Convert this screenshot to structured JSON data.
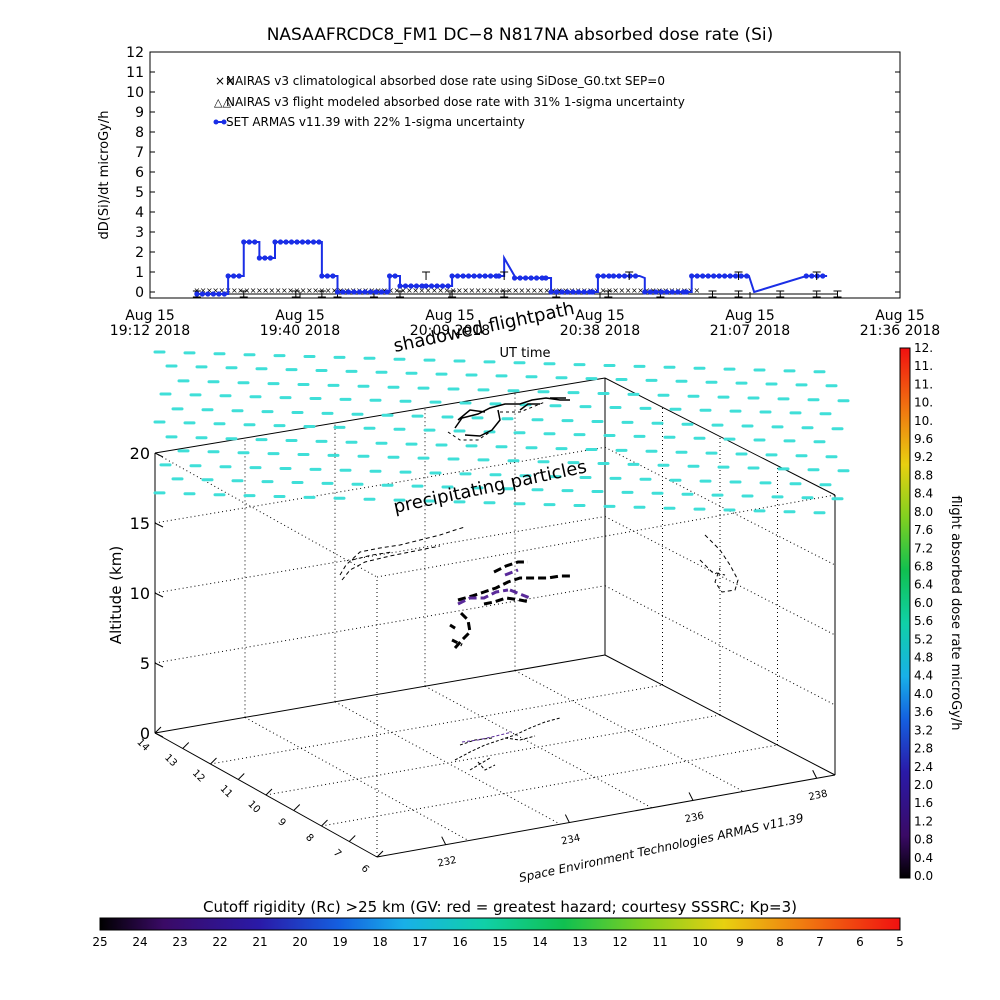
{
  "figure": {
    "title": "NASAAFRCDC8_FM1 DC−8    N817NA absorbed dose rate (Si)",
    "credit": "Space Environment Technologies ARMAS v11.39"
  },
  "colors": {
    "nairas_clim": "#d83030",
    "nairas_flight": "#000000",
    "armas": "#1a2ee6",
    "wind_barbs": "#3fdfd8",
    "shadow_track": "#000000",
    "track_3d": "#000000",
    "track_high_dose": "#5a2a9a"
  },
  "chart_data": [
    {
      "type": "line",
      "title": "NASAAFRCDC8_FM1 DC−8    N817NA absorbed dose rate (Si)",
      "xlabel": "UT time",
      "ylabel": "dD(Si)/dt microGy/h",
      "ylim": [
        0,
        12
      ],
      "yticks": [
        "0",
        "1",
        "2",
        "3",
        "4",
        "5",
        "6",
        "7",
        "8",
        "9",
        "10",
        "11",
        "12"
      ],
      "xlim": [
        "19:12",
        "21:36"
      ],
      "xticks": [
        {
          "date": "Aug 15",
          "time": "19:12 2018"
        },
        {
          "date": "Aug 15",
          "time": "19:40 2018"
        },
        {
          "date": "Aug 15",
          "time": "20:09 2018"
        },
        {
          "date": "Aug 15",
          "time": "20:38 2018"
        },
        {
          "date": "Aug 15",
          "time": "21:07 2018"
        },
        {
          "date": "Aug 15",
          "time": "21:36 2018"
        }
      ],
      "grid": false,
      "legend_position": "top-left",
      "series": [
        {
          "name": "NAIRAS v3 climatological absorbed dose rate using SiDose_G0.txt SEP=0",
          "marker": "x",
          "color": "#d83030",
          "x": [
            "19:21",
            "20:58"
          ],
          "y": [
            0.1,
            0.1
          ]
        },
        {
          "name": "NAIRAS v3 flight modeled absorbed dose rate with 31% 1-sigma uncertainty",
          "marker": "triangle",
          "color": "#000000",
          "x": [
            "19:21",
            "19:30",
            "19:40",
            "19:45",
            "19:48",
            "19:55",
            "20:00",
            "20:10",
            "20:20",
            "20:30",
            "20:40",
            "20:50",
            "21:00",
            "21:05",
            "21:13",
            "21:20",
            "21:24"
          ],
          "y": [
            -0.1,
            -0.1,
            -0.1,
            -0.1,
            -0.1,
            -0.1,
            -0.1,
            -0.1,
            -0.1,
            -0.1,
            -0.1,
            -0.1,
            -0.1,
            -0.1,
            -0.1,
            -0.1,
            -0.1
          ]
        },
        {
          "name": "SET ARMAS v11.39 with 22% 1-sigma uncertainty",
          "marker": "filled-circle",
          "color": "#1a2ee6",
          "x": [
            "19:21",
            "19:27",
            "19:27",
            "19:30",
            "19:30",
            "19:33",
            "19:33",
            "19:36",
            "19:36",
            "19:45",
            "19:45",
            "19:48",
            "19:48",
            "19:58",
            "19:58",
            "20:00",
            "20:00",
            "20:05",
            "20:10",
            "20:10",
            "20:19",
            "20:20",
            "20:20",
            "20:22",
            "20:22",
            "20:28",
            "20:29",
            "20:29",
            "20:37",
            "20:38",
            "20:38",
            "20:41",
            "20:41",
            "20:46",
            "20:47",
            "20:47",
            "20:55",
            "20:56",
            "20:56",
            "21:07",
            "21:08",
            "21:08",
            "21:18",
            "21:22"
          ],
          "y": [
            -0.1,
            -0.1,
            0.8,
            0.8,
            2.5,
            2.5,
            1.7,
            1.7,
            2.5,
            2.5,
            0.8,
            0.8,
            0,
            0,
            0.8,
            0.8,
            0.3,
            0.3,
            0.3,
            0.8,
            0.8,
            0.8,
            1.7,
            0.8,
            0.7,
            0.7,
            0.7,
            0,
            0,
            0,
            0.8,
            0.8,
            0.8,
            0.8,
            0.7,
            0,
            0,
            0,
            0.8,
            0.8,
            0,
            0,
            0.8,
            0.8
          ]
        }
      ]
    },
    {
      "type": "scatter",
      "subtype": "3d-flight-track",
      "zlabel": "Altitude (km)",
      "zticks": [
        "0",
        "5",
        "10",
        "15",
        "20"
      ],
      "zlim": [
        0,
        20
      ],
      "left_axis_ticks": [
        "14",
        "13",
        "12",
        "11",
        "10",
        "9",
        "8",
        "7",
        "6"
      ],
      "right_axis_ticks": [
        "232",
        "234",
        "236",
        "238"
      ],
      "annotations": [
        "shadowed flightpath",
        "precipitating particles"
      ],
      "colorbar_right": {
        "label": "flight absorbed dose rate microGy/h",
        "ticks": [
          "0.0",
          "0.4",
          "0.8",
          "1.2",
          "1.6",
          "2.0",
          "2.4",
          "2.8",
          "3.2",
          "3.6",
          "4.0",
          "4.4",
          "4.8",
          "5.2",
          "5.6",
          "6.0",
          "6.4",
          "6.8",
          "7.2",
          "7.6",
          "8.0",
          "8.4",
          "8.8",
          "9.2",
          "9.6",
          "10.",
          "10.",
          "11.",
          "11.",
          "12."
        ],
        "range": [
          0,
          12
        ]
      },
      "colorbar_bottom": {
        "label": "Cutoff rigidity (Rc) >25 km (GV: red = greatest hazard; courtesy SSSRC; Kp=3)",
        "ticks": [
          "25",
          "24",
          "23",
          "22",
          "21",
          "20",
          "19",
          "18",
          "17",
          "16",
          "15",
          "14",
          "13",
          "12",
          "11",
          "10",
          "9",
          "8",
          "7",
          "6",
          "5"
        ],
        "range": [
          25,
          5
        ]
      }
    }
  ]
}
